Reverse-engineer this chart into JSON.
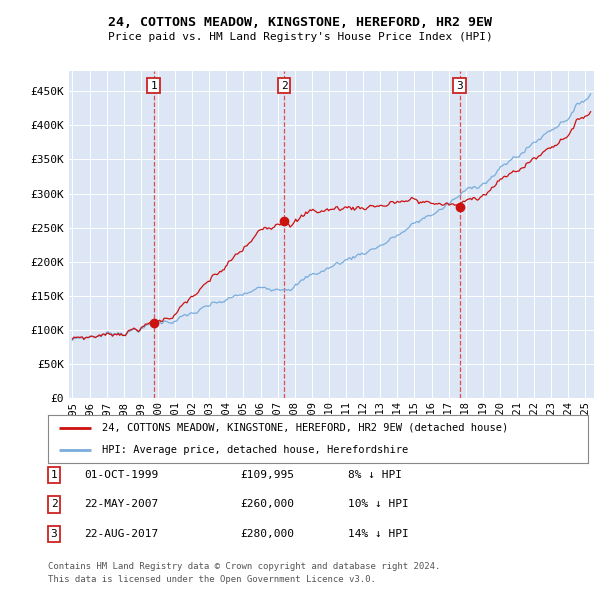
{
  "title": "24, COTTONS MEADOW, KINGSTONE, HEREFORD, HR2 9EW",
  "subtitle": "Price paid vs. HM Land Registry's House Price Index (HPI)",
  "ylabel_ticks": [
    "£0",
    "£50K",
    "£100K",
    "£150K",
    "£200K",
    "£250K",
    "£300K",
    "£350K",
    "£400K",
    "£450K"
  ],
  "ytick_values": [
    0,
    50000,
    100000,
    150000,
    200000,
    250000,
    300000,
    350000,
    400000,
    450000
  ],
  "ylim": [
    0,
    480000
  ],
  "xlim_start": 1994.8,
  "xlim_end": 2025.5,
  "background_color": "#dce6f5",
  "grid_color": "#ffffff",
  "hpi_line_color": "#7aaddc",
  "price_line_color": "#cc1111",
  "sale_points": [
    {
      "date_num": 1999.75,
      "price": 109995,
      "label": "1"
    },
    {
      "date_num": 2007.39,
      "price": 260000,
      "label": "2"
    },
    {
      "date_num": 2017.64,
      "price": 280000,
      "label": "3"
    }
  ],
  "transaction_table": [
    {
      "num": "1",
      "date": "01-OCT-1999",
      "price": "£109,995",
      "hpi": "8% ↓ HPI"
    },
    {
      "num": "2",
      "date": "22-MAY-2007",
      "price": "£260,000",
      "hpi": "10% ↓ HPI"
    },
    {
      "num": "3",
      "date": "22-AUG-2017",
      "price": "£280,000",
      "hpi": "14% ↓ HPI"
    }
  ],
  "legend_entries": [
    "24, COTTONS MEADOW, KINGSTONE, HEREFORD, HR2 9EW (detached house)",
    "HPI: Average price, detached house, Herefordshire"
  ],
  "footnote1": "Contains HM Land Registry data © Crown copyright and database right 2024.",
  "footnote2": "This data is licensed under the Open Government Licence v3.0."
}
